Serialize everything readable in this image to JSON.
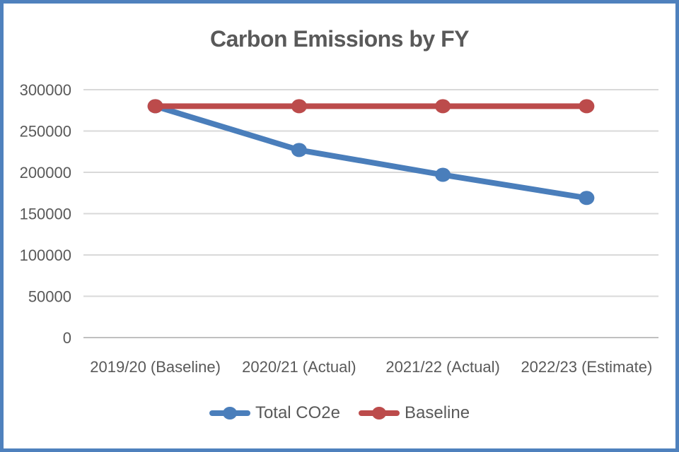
{
  "window": {
    "border_color": "#4f81bd",
    "background_color": "#ffffff"
  },
  "chart_data": {
    "type": "line",
    "title": "Carbon Emissions by FY",
    "categories": [
      "2019/20 (Baseline)",
      "2020/21 (Actual)",
      "2021/22 (Actual)",
      "2022/23 (Estimate)"
    ],
    "series": [
      {
        "name": "Total CO2e",
        "color": "#4a7ebb",
        "values": [
          280000,
          227000,
          197000,
          169000
        ]
      },
      {
        "name": "Baseline",
        "color": "#bc4b4b",
        "values": [
          280000,
          280000,
          280000,
          280000
        ]
      }
    ],
    "xlabel": "",
    "ylabel": "",
    "ylim": [
      0,
      300000
    ],
    "ytick_step": 50000,
    "ytick_labels": [
      "0",
      "50000",
      "100000",
      "150000",
      "200000",
      "250000",
      "300000"
    ],
    "grid": true,
    "legend_position": "bottom",
    "colors": {
      "gridline": "#d9d9d9",
      "axis_line": "#c0c0c0",
      "tick_text": "#595959",
      "title_text": "#595959"
    }
  }
}
